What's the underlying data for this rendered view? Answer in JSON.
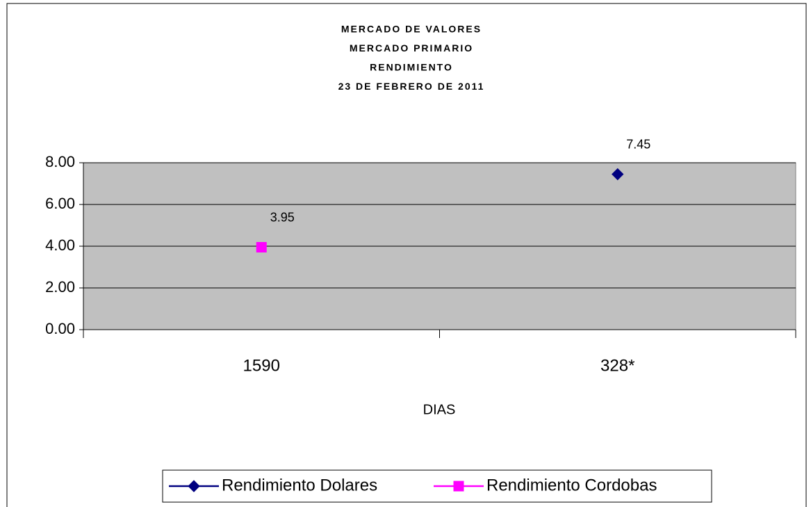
{
  "chart_data": {
    "type": "line",
    "title": [
      "MERCADO DE VALORES",
      "MERCADO PRIMARIO",
      "RENDIMIENTO",
      "23 DE FEBRERO DE 2011"
    ],
    "x_label": "DIAS",
    "categories": [
      "1590",
      "328*"
    ],
    "series": [
      {
        "name": "Rendimiento Dolares",
        "color": "#000080",
        "marker": "diamond",
        "values": [
          null,
          7.45
        ]
      },
      {
        "name": "Rendimiento Cordobas",
        "color": "#ff00ff",
        "marker": "square",
        "values": [
          3.95,
          null
        ]
      }
    ],
    "ylim": [
      0,
      8
    ],
    "yticks": [
      {
        "value": 0,
        "label": "0.00"
      },
      {
        "value": 2,
        "label": "2.00"
      },
      {
        "value": 4,
        "label": "4.00"
      },
      {
        "value": 6,
        "label": "6.00"
      },
      {
        "value": 8,
        "label": "8.00"
      }
    ],
    "grid": true,
    "legend": "bottom",
    "plot_background": "#c0c0c0"
  }
}
